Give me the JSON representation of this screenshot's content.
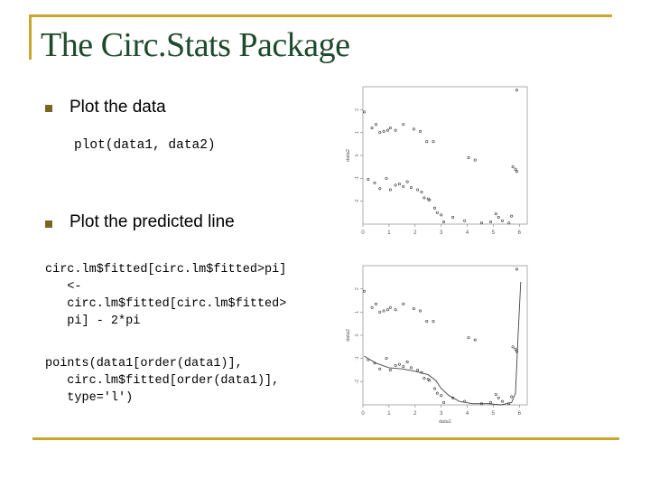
{
  "slide": {
    "title": "The Circ.Stats Package",
    "colors": {
      "accent": "#c8a82c",
      "title": "#1f4a2c",
      "bullet": "#7a6522",
      "text": "#000000"
    },
    "bullets": [
      {
        "text": "Plot the data"
      },
      {
        "text": "Plot the predicted line"
      }
    ],
    "code1": "plot(data1, data2)",
    "code2": "circ.lm$fitted[circ.lm$fitted>pi]\n   <-\n   circ.lm$fitted[circ.lm$fitted>\n   pi] - 2*pi",
    "code3": "points(data1[order(data1)],\n   circ.lm$fitted[order(data1)],\n   type='l')"
  },
  "chart_data": [
    {
      "type": "scatter",
      "xlabel": "",
      "ylabel": "data2",
      "xlim": [
        0,
        6.3
      ],
      "ylim": [
        -3,
        3
      ],
      "x_ticks": [
        "0",
        "1",
        "2",
        "3",
        "4",
        "5",
        "6"
      ],
      "y_ticks": [
        "-2",
        "-1",
        "0",
        "1",
        "2"
      ],
      "points": [
        [
          0.05,
          1.9
        ],
        [
          0.35,
          1.2
        ],
        [
          0.5,
          1.35
        ],
        [
          0.65,
          1.0
        ],
        [
          0.8,
          1.05
        ],
        [
          0.95,
          1.1
        ],
        [
          1.05,
          1.2
        ],
        [
          1.25,
          1.1
        ],
        [
          1.55,
          1.35
        ],
        [
          1.95,
          1.15
        ],
        [
          2.2,
          1.05
        ],
        [
          2.45,
          0.6
        ],
        [
          2.7,
          0.6
        ],
        [
          4.05,
          -0.1
        ],
        [
          4.3,
          -0.2
        ],
        [
          5.9,
          2.85
        ],
        [
          5.75,
          -0.5
        ],
        [
          5.85,
          -0.6
        ],
        [
          5.9,
          -0.7
        ],
        [
          0.2,
          -1.05
        ],
        [
          0.45,
          -1.2
        ],
        [
          0.65,
          -1.45
        ],
        [
          0.9,
          -1.0
        ],
        [
          1.05,
          -1.5
        ],
        [
          1.25,
          -1.3
        ],
        [
          1.4,
          -1.25
        ],
        [
          1.55,
          -1.35
        ],
        [
          1.7,
          -1.15
        ],
        [
          1.85,
          -1.4
        ],
        [
          2.1,
          -1.5
        ],
        [
          2.25,
          -1.6
        ],
        [
          2.35,
          -1.85
        ],
        [
          2.5,
          -1.9
        ],
        [
          2.55,
          -1.95
        ],
        [
          2.75,
          -2.3
        ],
        [
          2.85,
          -2.5
        ],
        [
          3.0,
          -2.6
        ],
        [
          3.1,
          -2.9
        ],
        [
          3.45,
          -2.7
        ],
        [
          3.9,
          -2.85
        ],
        [
          4.55,
          -2.95
        ],
        [
          4.9,
          -2.9
        ],
        [
          5.1,
          -2.55
        ],
        [
          5.2,
          -2.7
        ],
        [
          5.35,
          -2.85
        ],
        [
          5.6,
          -2.95
        ],
        [
          5.7,
          -2.65
        ]
      ]
    },
    {
      "type": "scatter",
      "xlabel": "data1",
      "ylabel": "data2",
      "xlim": [
        0,
        6.3
      ],
      "ylim": [
        -3,
        3
      ],
      "x_ticks": [
        "0",
        "1",
        "2",
        "3",
        "4",
        "5",
        "6"
      ],
      "y_ticks": [
        "-2",
        "-1",
        "0",
        "1",
        "2"
      ],
      "points": [
        [
          0.05,
          1.9
        ],
        [
          0.35,
          1.2
        ],
        [
          0.5,
          1.35
        ],
        [
          0.65,
          1.0
        ],
        [
          0.8,
          1.05
        ],
        [
          0.95,
          1.1
        ],
        [
          1.05,
          1.2
        ],
        [
          1.25,
          1.1
        ],
        [
          1.55,
          1.35
        ],
        [
          1.95,
          1.15
        ],
        [
          2.2,
          1.05
        ],
        [
          2.45,
          0.6
        ],
        [
          2.7,
          0.6
        ],
        [
          4.05,
          -0.1
        ],
        [
          4.3,
          -0.2
        ],
        [
          5.9,
          2.85
        ],
        [
          5.75,
          -0.5
        ],
        [
          5.85,
          -0.6
        ],
        [
          5.9,
          -0.7
        ],
        [
          0.2,
          -1.05
        ],
        [
          0.45,
          -1.2
        ],
        [
          0.65,
          -1.45
        ],
        [
          0.9,
          -1.0
        ],
        [
          1.05,
          -1.5
        ],
        [
          1.25,
          -1.3
        ],
        [
          1.4,
          -1.25
        ],
        [
          1.55,
          -1.35
        ],
        [
          1.7,
          -1.15
        ],
        [
          1.85,
          -1.4
        ],
        [
          2.1,
          -1.5
        ],
        [
          2.25,
          -1.6
        ],
        [
          2.35,
          -1.85
        ],
        [
          2.5,
          -1.9
        ],
        [
          2.55,
          -1.95
        ],
        [
          2.75,
          -2.3
        ],
        [
          2.85,
          -2.5
        ],
        [
          3.0,
          -2.6
        ],
        [
          3.1,
          -2.9
        ],
        [
          3.45,
          -2.7
        ],
        [
          3.9,
          -2.85
        ],
        [
          4.55,
          -2.95
        ],
        [
          4.9,
          -2.9
        ],
        [
          5.1,
          -2.55
        ],
        [
          5.2,
          -2.7
        ],
        [
          5.35,
          -2.85
        ],
        [
          5.6,
          -2.95
        ],
        [
          5.7,
          -2.65
        ]
      ],
      "fitted_line": [
        [
          0.05,
          -0.9
        ],
        [
          0.5,
          -1.2
        ],
        [
          1.0,
          -1.4
        ],
        [
          1.5,
          -1.45
        ],
        [
          2.0,
          -1.55
        ],
        [
          2.5,
          -1.7
        ],
        [
          2.8,
          -1.95
        ],
        [
          3.0,
          -2.3
        ],
        [
          3.3,
          -2.6
        ],
        [
          3.7,
          -2.85
        ],
        [
          4.2,
          -2.95
        ],
        [
          4.8,
          -2.95
        ],
        [
          5.3,
          -3.0
        ],
        [
          5.7,
          -2.9
        ],
        [
          5.85,
          -2.5
        ],
        [
          5.95,
          0.0
        ],
        [
          6.05,
          2.3
        ]
      ]
    }
  ]
}
